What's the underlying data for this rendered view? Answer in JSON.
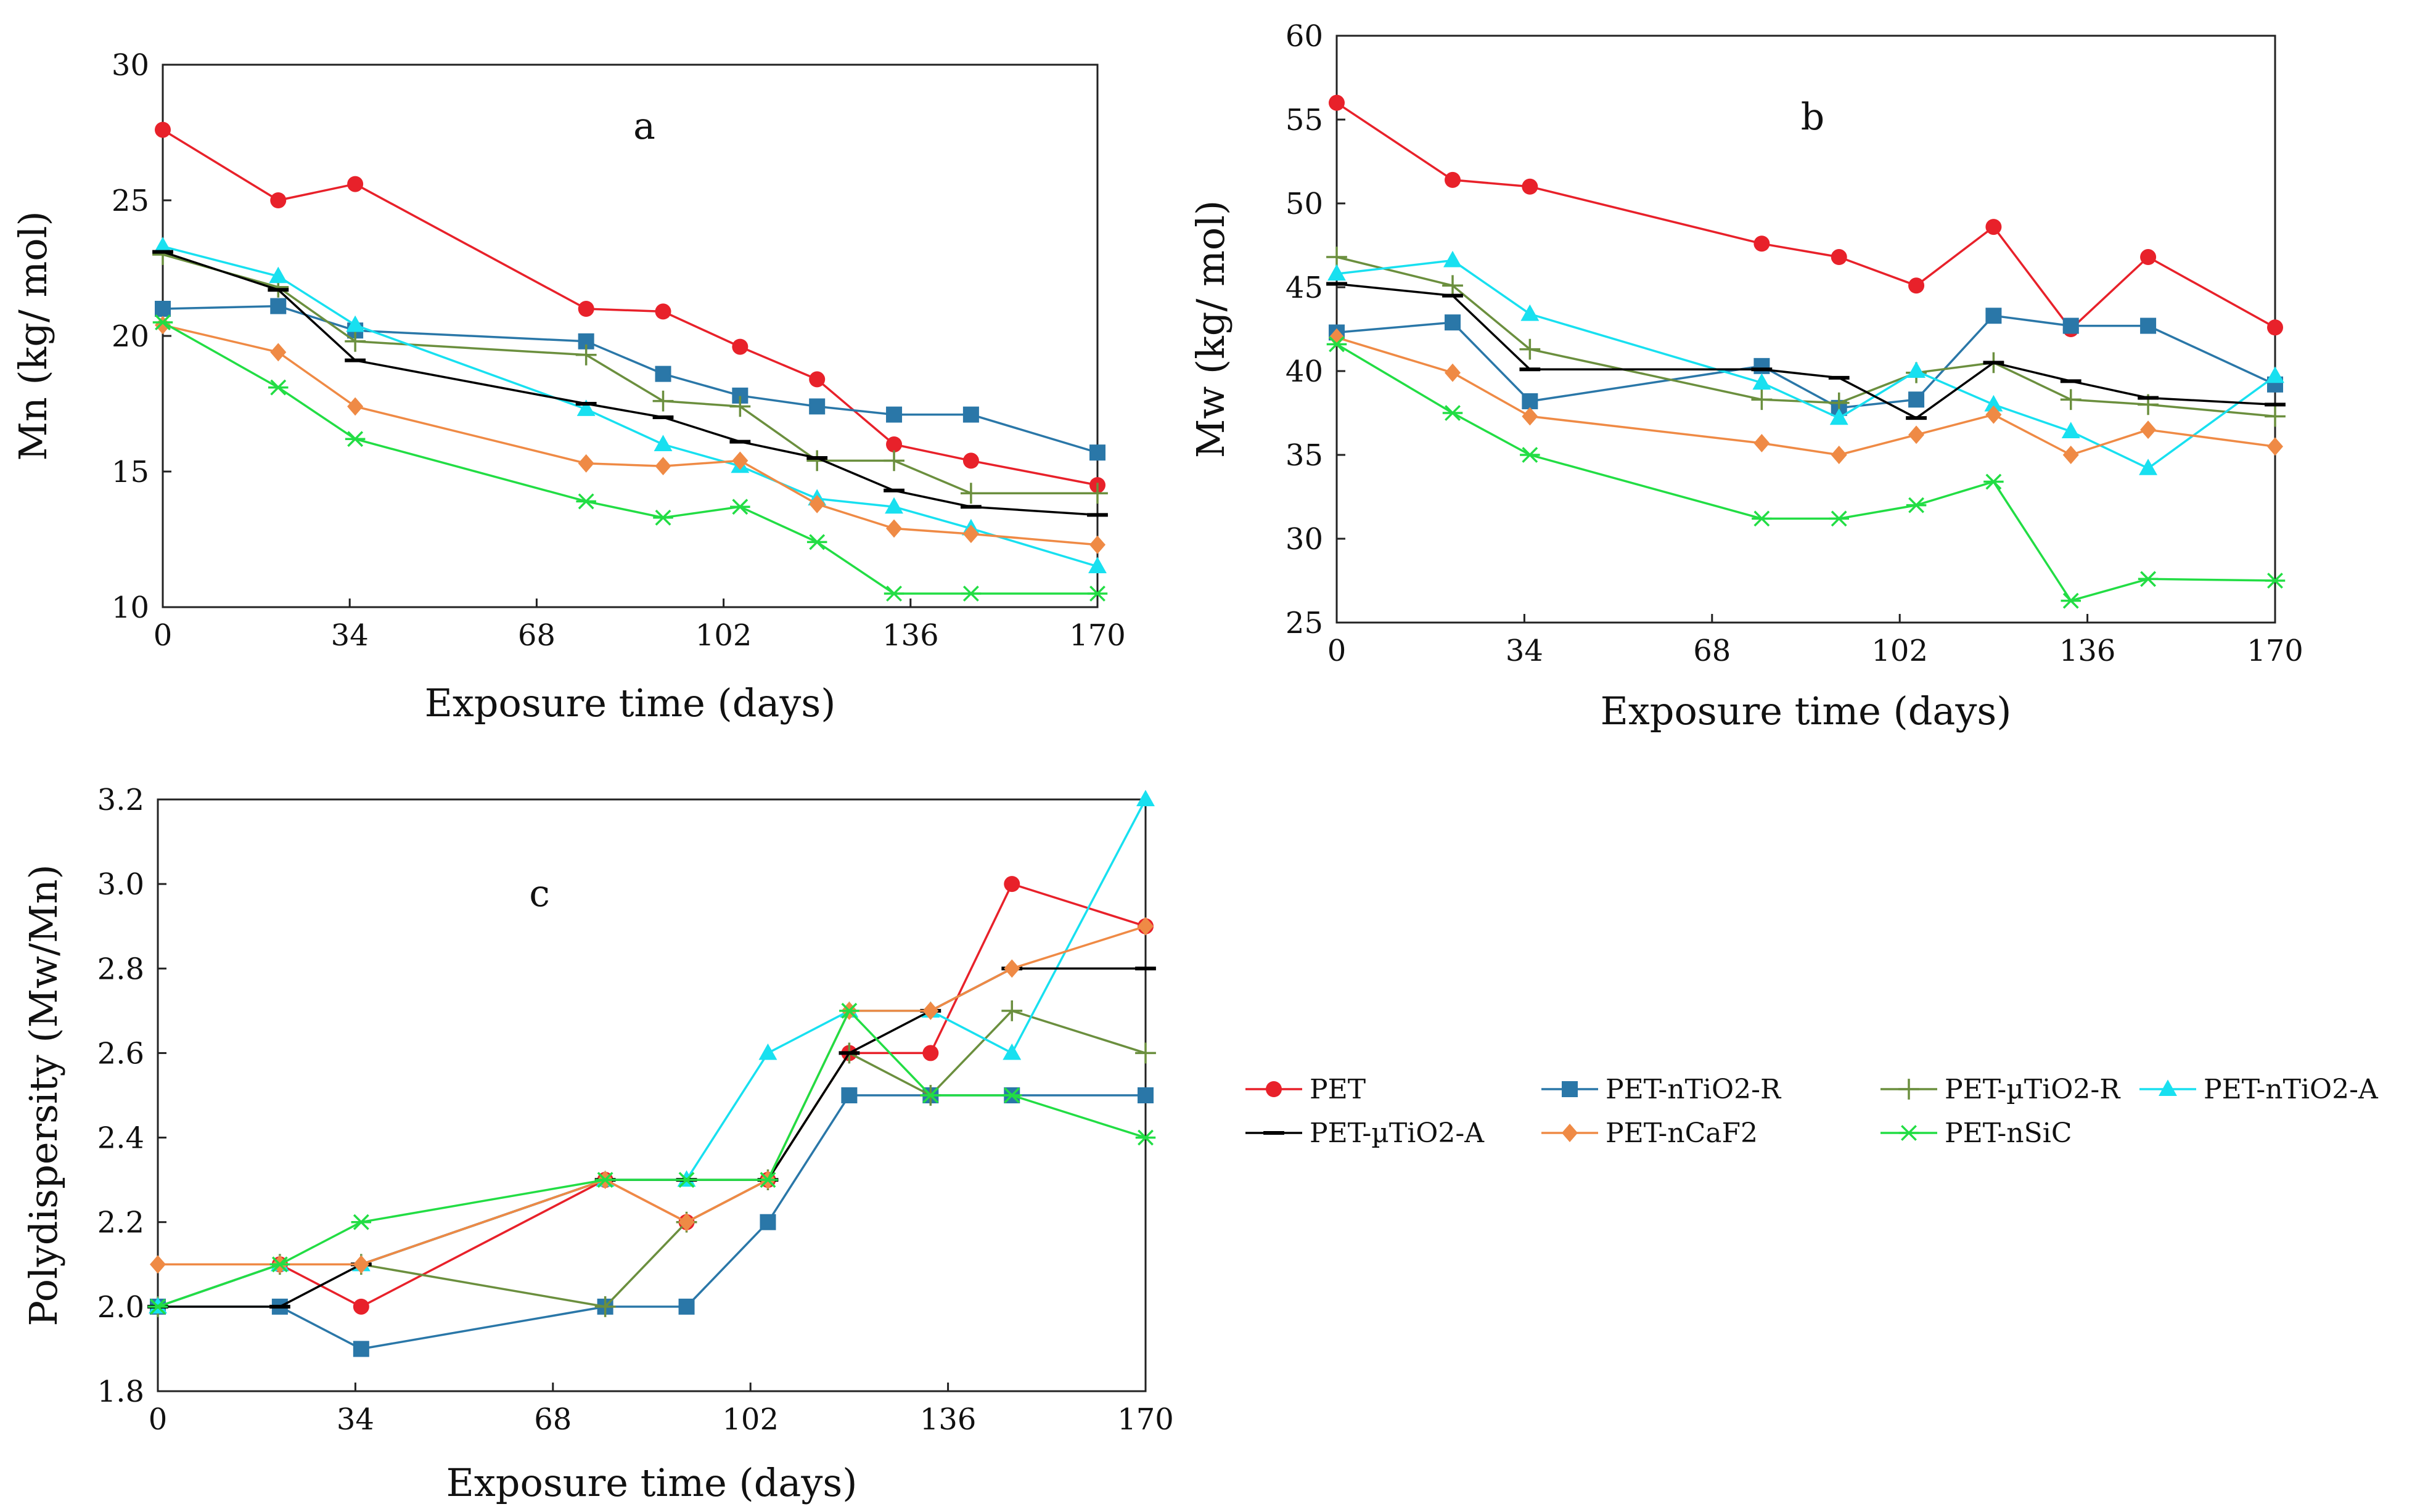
{
  "series_styles": [
    {
      "name": "PET",
      "color": "#e8212a",
      "marker": "circle"
    },
    {
      "name": "PET-nTiO2-R",
      "color": "#2a77a8",
      "marker": "square"
    },
    {
      "name": "PET-µTiO2-R",
      "color": "#6b8f3e",
      "marker": "plus"
    },
    {
      "name": "PET-nTiO2-A",
      "color": "#18e0f0",
      "marker": "triangle"
    },
    {
      "name": "PET-µTiO2-A",
      "color": "#000000",
      "marker": "dash"
    },
    {
      "name": "PET-nCaF2",
      "color": "#ef8a45",
      "marker": "diamond"
    },
    {
      "name": "PET-nSiC",
      "color": "#22dd44",
      "marker": "asterisk"
    }
  ],
  "chart_data": [
    {
      "type": "line",
      "panel_label": "a",
      "xlabel": "Exposure time (days)",
      "ylabel": "Mn (kg/ mol)",
      "xlim": [
        0,
        170
      ],
      "ylim": [
        10,
        30
      ],
      "xticks": [
        0,
        34,
        68,
        102,
        136,
        170
      ],
      "yticks": [
        10,
        15,
        20,
        25,
        30
      ],
      "x": [
        0,
        21,
        35,
        77,
        91,
        105,
        119,
        133,
        147,
        170
      ],
      "series": [
        {
          "name": "PET",
          "values": [
            27.6,
            25.0,
            25.6,
            21.0,
            20.9,
            19.6,
            18.4,
            16.0,
            15.4,
            14.5
          ]
        },
        {
          "name": "PET-nTiO2-R",
          "values": [
            21.0,
            21.1,
            20.2,
            19.8,
            18.6,
            17.8,
            17.4,
            17.1,
            17.1,
            15.7
          ]
        },
        {
          "name": "PET-µTiO2-R",
          "values": [
            23.0,
            21.8,
            19.8,
            19.3,
            17.6,
            17.4,
            15.4,
            15.4,
            14.2,
            14.2
          ]
        },
        {
          "name": "PET-nTiO2-A",
          "values": [
            23.3,
            22.2,
            20.4,
            17.3,
            16.0,
            15.2,
            14.0,
            13.7,
            12.9,
            11.5
          ]
        },
        {
          "name": "PET-µTiO2-A",
          "values": [
            23.1,
            21.7,
            19.1,
            17.5,
            17.0,
            16.1,
            15.5,
            14.3,
            13.7,
            13.4
          ]
        },
        {
          "name": "PET-nCaF2",
          "values": [
            20.4,
            19.4,
            17.4,
            15.3,
            15.2,
            15.4,
            13.8,
            12.9,
            12.7,
            12.3
          ]
        },
        {
          "name": "PET-nSiC",
          "values": [
            20.5,
            18.1,
            16.2,
            13.9,
            13.3,
            13.7,
            12.4,
            10.5,
            10.5,
            10.5
          ]
        }
      ]
    },
    {
      "type": "line",
      "panel_label": "b",
      "xlabel": "Exposure time (days)",
      "ylabel": "Mw (kg/ mol)",
      "xlim": [
        0,
        170
      ],
      "ylim": [
        25,
        60
      ],
      "xticks": [
        0,
        34,
        68,
        102,
        136,
        170
      ],
      "yticks": [
        25,
        30,
        35,
        40,
        45,
        50,
        55,
        60
      ],
      "x": [
        0,
        21,
        35,
        77,
        91,
        105,
        119,
        133,
        147,
        170
      ],
      "series": [
        {
          "name": "PET",
          "values": [
            56.0,
            51.4,
            51.0,
            47.6,
            46.8,
            45.1,
            48.6,
            42.5,
            46.8,
            42.6
          ]
        },
        {
          "name": "PET-nTiO2-R",
          "values": [
            42.3,
            42.9,
            38.2,
            40.3,
            37.8,
            38.3,
            43.3,
            42.7,
            42.7,
            39.2
          ]
        },
        {
          "name": "PET-µTiO2-R",
          "values": [
            46.8,
            45.1,
            41.3,
            38.3,
            38.1,
            39.9,
            40.5,
            38.3,
            38.0,
            37.3
          ]
        },
        {
          "name": "PET-nTiO2-A",
          "values": [
            45.8,
            46.6,
            43.4,
            39.3,
            37.2,
            40.0,
            38.0,
            36.4,
            34.2,
            39.7
          ]
        },
        {
          "name": "PET-µTiO2-A",
          "values": [
            45.2,
            44.5,
            40.1,
            40.1,
            39.6,
            37.2,
            40.5,
            39.4,
            38.4,
            38.0
          ]
        },
        {
          "name": "PET-nCaF2",
          "values": [
            42.0,
            39.9,
            37.3,
            35.7,
            35.0,
            36.2,
            37.4,
            35.0,
            36.5,
            35.5
          ]
        },
        {
          "name": "PET-nSiC",
          "values": [
            41.6,
            37.5,
            35.0,
            31.2,
            31.2,
            32.0,
            33.4,
            26.3,
            27.6,
            27.5
          ]
        }
      ]
    },
    {
      "type": "line",
      "panel_label": "c",
      "xlabel": "Exposure time (days)",
      "ylabel": "Polydispersity (Mw/Mn)",
      "xlim": [
        0,
        170
      ],
      "ylim": [
        1.8,
        3.2
      ],
      "xticks": [
        0,
        34,
        68,
        102,
        136,
        170
      ],
      "ytick_labels": [
        "1.8",
        "2.0",
        "2.2",
        "2.4",
        "2.6",
        "2.8",
        "3.0",
        "3.2"
      ],
      "x": [
        0,
        21,
        35,
        77,
        91,
        105,
        119,
        133,
        147,
        170
      ],
      "series": [
        {
          "name": "PET",
          "values": [
            2.0,
            2.1,
            2.0,
            2.3,
            2.2,
            2.3,
            2.6,
            2.6,
            3.0,
            2.9
          ]
        },
        {
          "name": "PET-nTiO2-R",
          "values": [
            2.0,
            2.0,
            1.9,
            2.0,
            2.0,
            2.2,
            2.5,
            2.5,
            2.5,
            2.5
          ]
        },
        {
          "name": "PET-µTiO2-R",
          "values": [
            2.0,
            2.1,
            2.1,
            2.0,
            2.2,
            2.3,
            2.6,
            2.5,
            2.7,
            2.6
          ]
        },
        {
          "name": "PET-nTiO2-A",
          "values": [
            2.0,
            2.1,
            2.1,
            2.3,
            2.3,
            2.6,
            2.7,
            2.7,
            2.6,
            3.2
          ]
        },
        {
          "name": "PET-µTiO2-A",
          "values": [
            2.0,
            2.0,
            2.1,
            2.3,
            2.3,
            2.3,
            2.6,
            2.7,
            2.8,
            2.8
          ]
        },
        {
          "name": "PET-nCaF2",
          "values": [
            2.1,
            2.1,
            2.1,
            2.3,
            2.2,
            2.3,
            2.7,
            2.7,
            2.8,
            2.9
          ]
        },
        {
          "name": "PET-nSiC",
          "values": [
            2.0,
            2.1,
            2.2,
            2.3,
            2.3,
            2.3,
            2.7,
            2.5,
            2.5,
            2.4
          ]
        }
      ]
    }
  ],
  "legend": {
    "placement": "right-middle",
    "entries": [
      "PET",
      "PET-nTiO2-R",
      "PET-µTiO2-R",
      "PET-nTiO2-A",
      "PET-µTiO2-A",
      "PET-nCaF2",
      "PET-nSiC"
    ]
  }
}
